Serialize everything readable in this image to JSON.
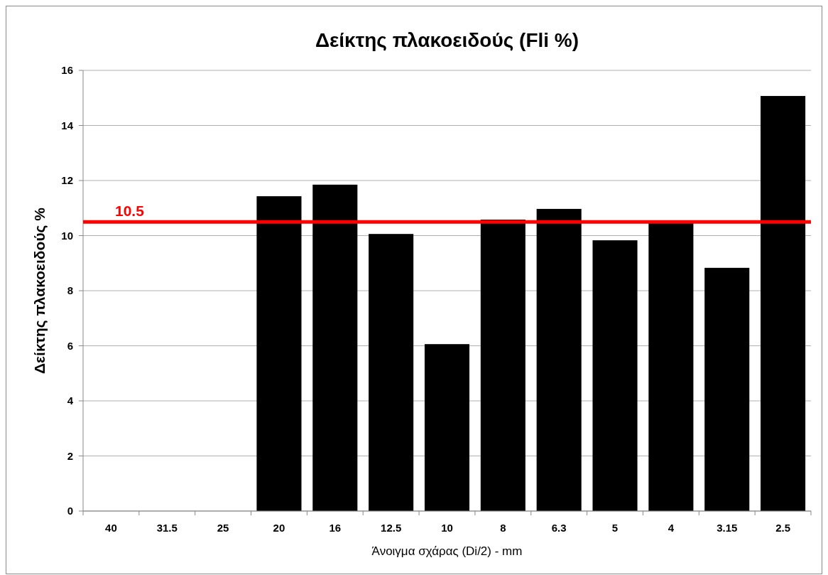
{
  "chart_data": {
    "type": "bar",
    "title": "Δείκτης πλακοειδούς (Fli %)",
    "xlabel": "Άνοιγμα σχάρας (Di/2) - mm",
    "ylabel": "Δείκτης πλακοειδούς %",
    "categories": [
      "40",
      "31.5",
      "25",
      "20",
      "16",
      "12.5",
      "10",
      "8",
      "6.3",
      "5",
      "4",
      "3.15",
      "2.5"
    ],
    "values": [
      null,
      null,
      null,
      11.43,
      11.85,
      10.06,
      6.06,
      10.58,
      10.97,
      9.83,
      10.48,
      8.83,
      15.07
    ],
    "color": "#000000",
    "ylim": [
      0,
      16
    ],
    "yticks": [
      0,
      2,
      4,
      6,
      8,
      10,
      12,
      14,
      16
    ],
    "grid": "y",
    "ref_lines": [
      {
        "axis": "y",
        "value": 10.5,
        "label": "10.5",
        "color": "#ff0000"
      }
    ]
  }
}
